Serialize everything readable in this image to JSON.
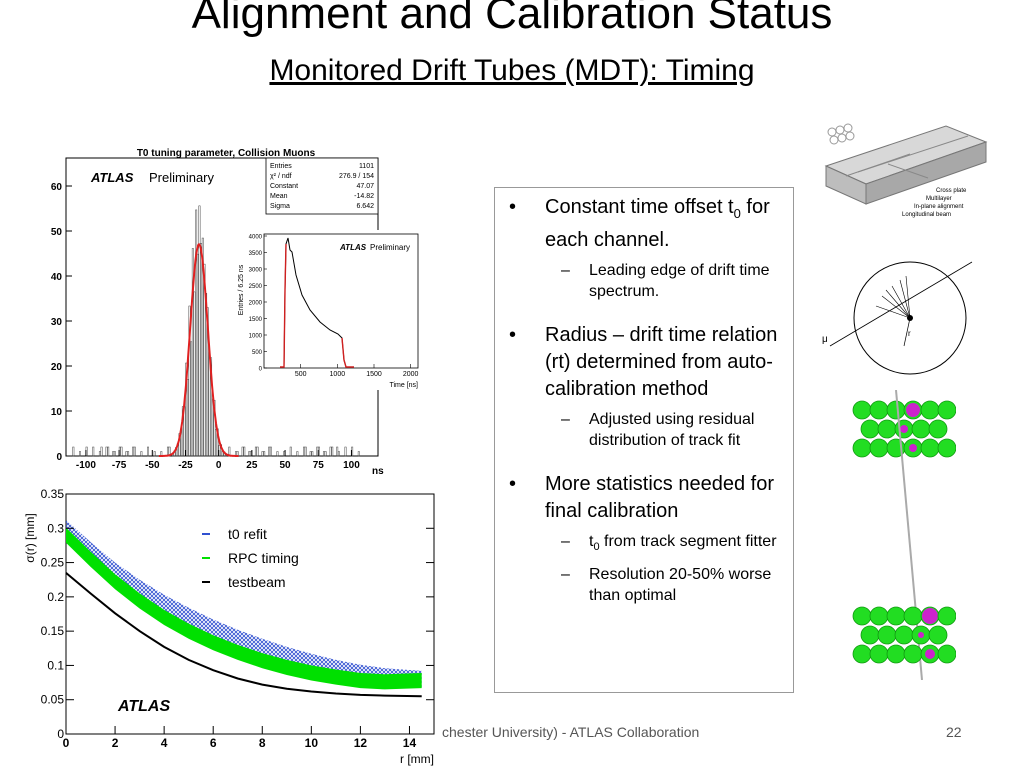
{
  "slide": {
    "title": "Alignment and Calibration Status",
    "subtitle": "Monitored Drift Tubes (MDT): Timing",
    "footer": "chester University) - ATLAS Collaboration",
    "page_number": "22"
  },
  "bullets": [
    {
      "text": "Constant time offset t",
      "sub": "0",
      "text2": " for each channel.",
      "subs": [
        {
          "text": "Leading edge of drift time spectrum."
        }
      ]
    },
    {
      "text": "Radius – drift time relation (rt) determined from auto-calibration method",
      "subs": [
        {
          "text": "Adjusted using residual distribution of track fit"
        }
      ]
    },
    {
      "text": "More statistics needed for final calibration",
      "subs": [
        {
          "pre": "t",
          "sub": "0",
          "text": " from track segment fitter"
        },
        {
          "text": "Resolution 20-50% worse than optimal"
        }
      ]
    }
  ],
  "labels": {
    "bullet": "•",
    "dash": "–"
  },
  "histogram": {
    "title": "T0 tuning parameter,  Collision Muons",
    "atlas": "ATLAS",
    "preliminary": "Preliminary",
    "stats": [
      {
        "name": "Entries",
        "value": "1101"
      },
      {
        "name": "χ² / ndf",
        "value": "276.9  /  154"
      },
      {
        "name": "Constant",
        "value": "47.07"
      },
      {
        "name": "Mean",
        "value": "-14.82"
      },
      {
        "name": "Sigma",
        "value": "6.642"
      }
    ],
    "xunit": "ns",
    "x_ticks": [
      "-100",
      "-75",
      "-50",
      "-25",
      "0",
      "25",
      "50",
      "75",
      "100"
    ],
    "y_ticks": [
      "0",
      "10",
      "20",
      "30",
      "40",
      "50",
      "60"
    ]
  },
  "inset": {
    "atlas": "ATLAS",
    "preliminary": "Preliminary",
    "ylabel": "Entries / 6.25 ns",
    "xlabel": "Time [ns]",
    "x_ticks": [
      "500",
      "1000",
      "1500",
      "2000"
    ],
    "y_ticks": [
      "0",
      "500",
      "1000",
      "1500",
      "2000",
      "2500",
      "3000",
      "3500",
      "4000"
    ]
  },
  "chart_data": {
    "type": "line",
    "ylabel": "σ(r) [mm]",
    "xlabel": "r [mm]",
    "atlas_label": "ATLAS",
    "xlim": [
      0,
      15
    ],
    "ylim": [
      0,
      0.35
    ],
    "x_ticks": [
      "0",
      "2",
      "4",
      "6",
      "8",
      "10",
      "12",
      "14"
    ],
    "y_ticks": [
      "0",
      "0.05",
      "0.1",
      "0.15",
      "0.2",
      "0.25",
      "0.3",
      "0.35"
    ],
    "series": [
      {
        "name": "t0 refit",
        "color": "#3050d0",
        "style": "hatched band",
        "x": [
          0,
          1,
          2,
          3,
          4,
          5,
          6,
          7,
          8,
          9,
          10,
          11,
          12,
          13,
          14.5
        ],
        "y": [
          0.3,
          0.268,
          0.238,
          0.213,
          0.191,
          0.172,
          0.155,
          0.14,
          0.127,
          0.115,
          0.105,
          0.096,
          0.089,
          0.084,
          0.08
        ]
      },
      {
        "name": "RPC timing",
        "color": "#00e000",
        "style": "filled band",
        "x": [
          0,
          1,
          2,
          3,
          4,
          5,
          6,
          7,
          8,
          9,
          10,
          11,
          12,
          13,
          14.5
        ],
        "y": [
          0.29,
          0.255,
          0.222,
          0.194,
          0.17,
          0.15,
          0.133,
          0.119,
          0.107,
          0.097,
          0.089,
          0.083,
          0.078,
          0.076,
          0.078
        ]
      },
      {
        "name": "testbeam",
        "color": "#000000",
        "style": "line",
        "x": [
          0,
          1,
          2,
          3,
          4,
          5,
          6,
          7,
          8,
          9,
          10,
          11,
          12,
          13,
          14.5
        ],
        "y": [
          0.235,
          0.205,
          0.176,
          0.15,
          0.127,
          0.108,
          0.093,
          0.081,
          0.072,
          0.066,
          0.062,
          0.059,
          0.057,
          0.056,
          0.055
        ]
      }
    ]
  },
  "diagrams": {
    "chamber_labels": [
      "Cross plate",
      "Multilayer",
      "In-plane alignment",
      "Longitudinal beam"
    ],
    "tube_labels": [
      "μ",
      "r"
    ]
  }
}
